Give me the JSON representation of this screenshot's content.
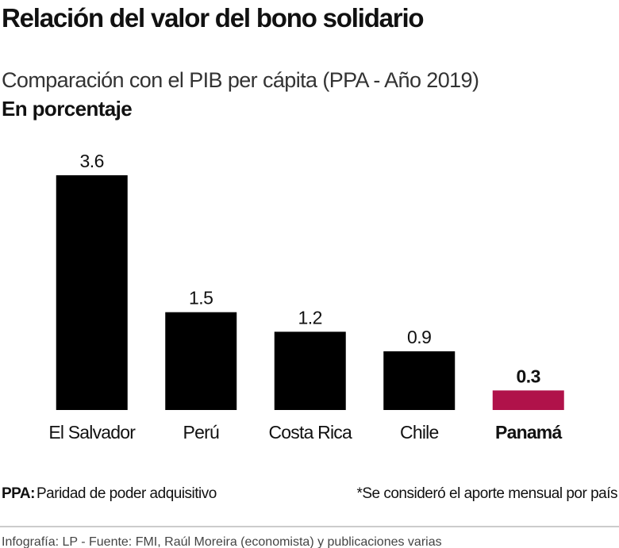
{
  "chart_data": {
    "type": "bar",
    "title": "Relación del valor del bono solidario",
    "subtitle": "Comparación con el PIB per cápita (PPA - Año 2019)",
    "unit_label": "En porcentaje",
    "categories": [
      "El Salvador",
      "Perú",
      "Costa Rica",
      "Chile",
      "Panamá"
    ],
    "values": [
      3.6,
      1.5,
      1.2,
      0.9,
      0.3
    ],
    "colors": [
      "#000000",
      "#000000",
      "#000000",
      "#000000",
      "#b0124a"
    ],
    "highlight": [
      false,
      false,
      false,
      false,
      true
    ],
    "footnote_term": "PPA:",
    "footnote_definition": "Paridad de poder adquisitivo",
    "footnote_right": "*Se consideró el aporte mensual por país",
    "source": "Infografía: LP - Fuente: FMI, Raúl Moreira (economista) y publicaciones varias"
  }
}
